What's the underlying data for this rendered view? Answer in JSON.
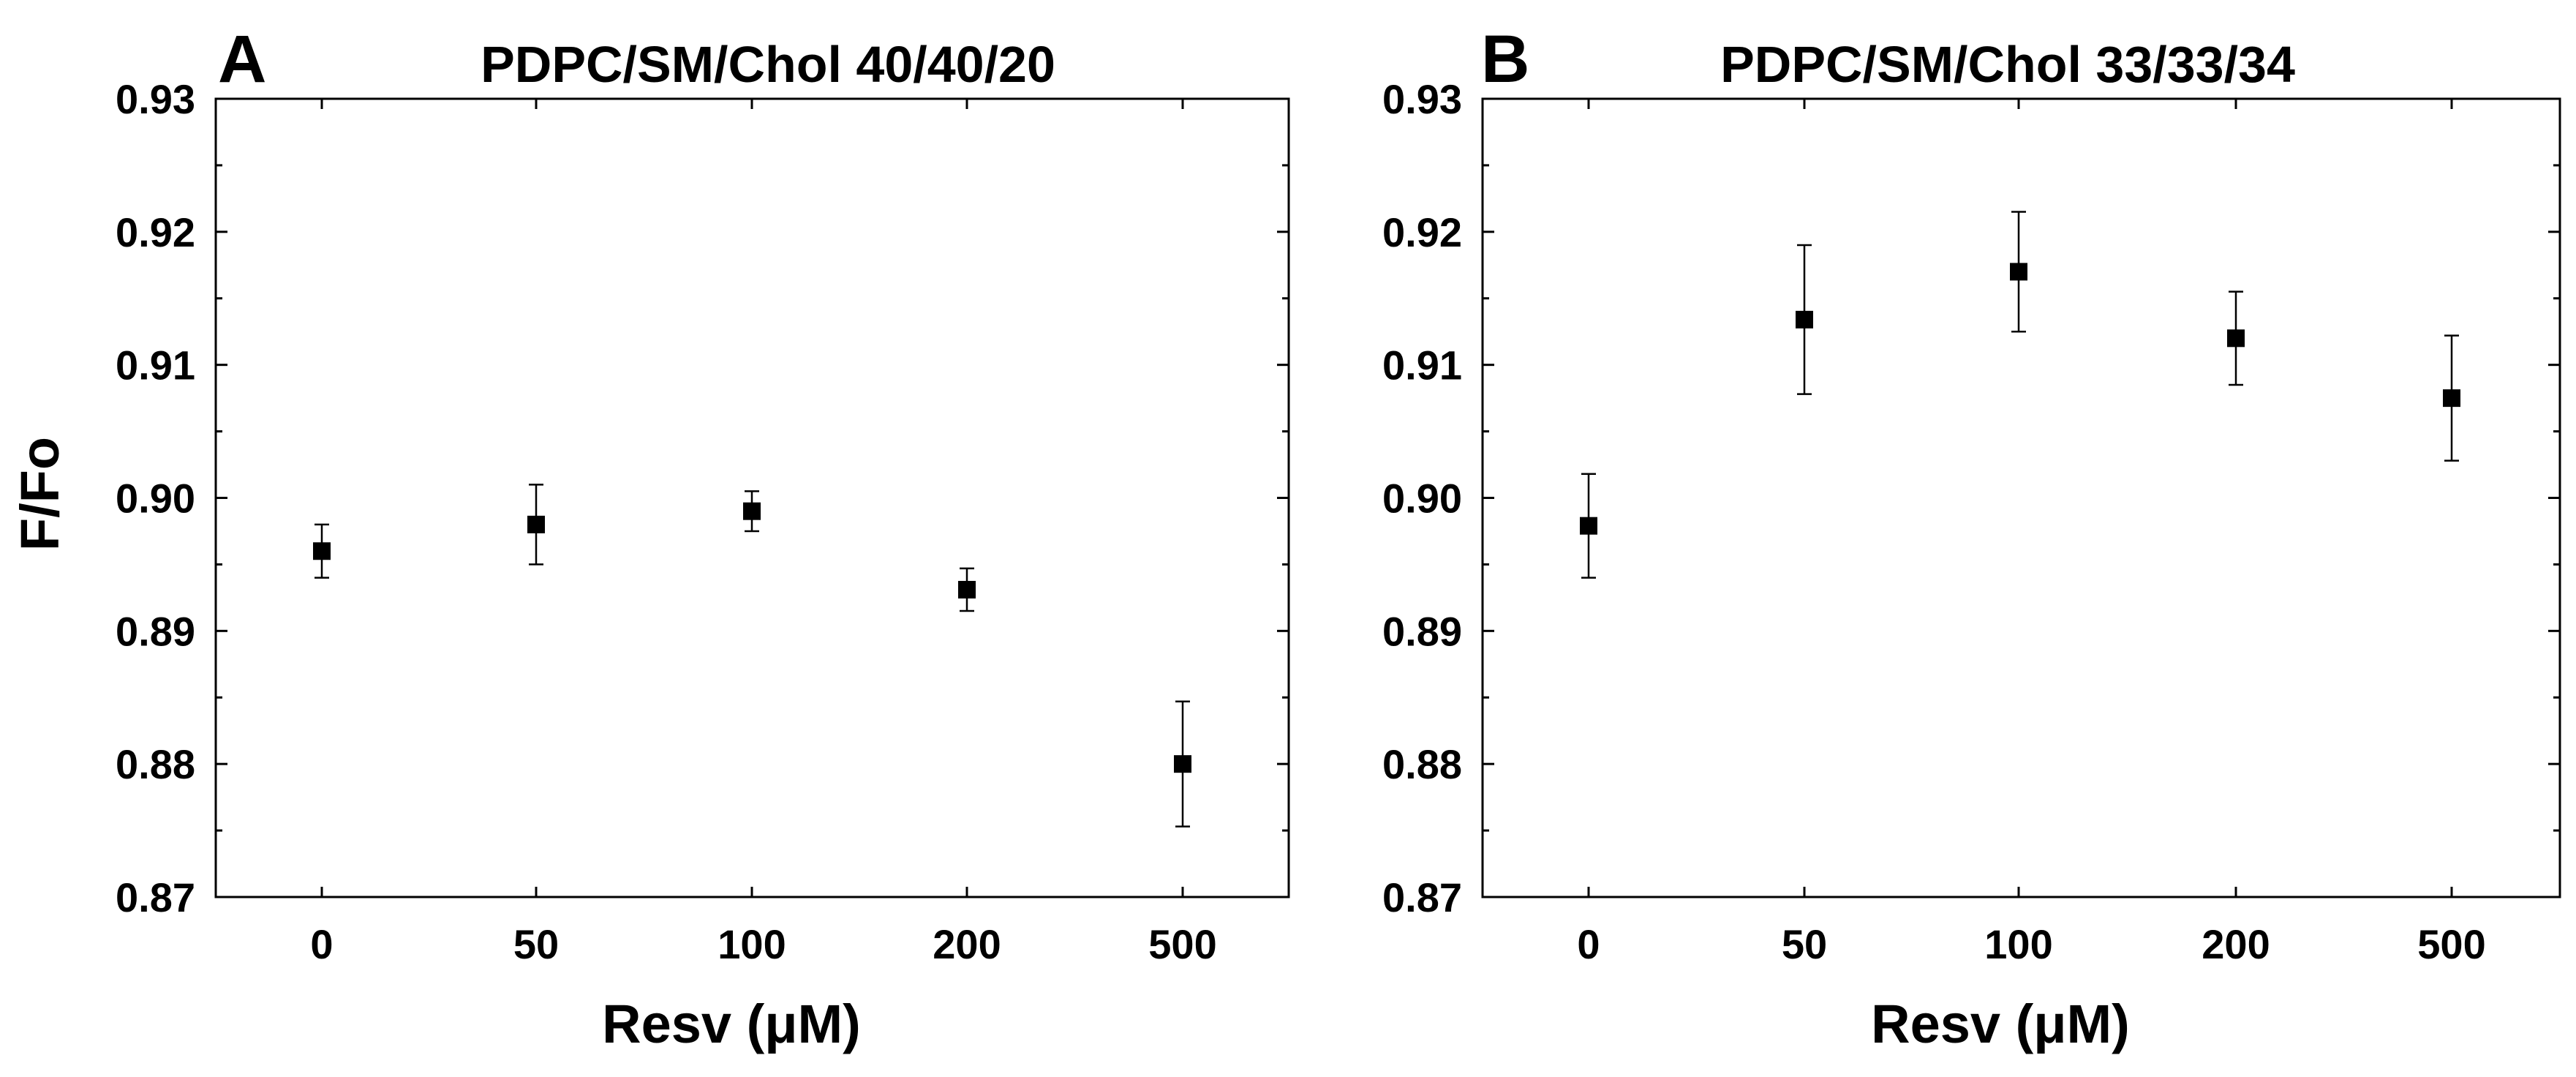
{
  "figure": {
    "ylabel": "F/Fo",
    "xlabel": "Resv (μM)"
  },
  "chart_data": [
    {
      "type": "scatter",
      "panel": "A",
      "title": "PDPC/SM/Chol 40/40/20",
      "xlabel": "Resv (μM)",
      "ylabel": "F/Fo",
      "categories": [
        "0",
        "50",
        "100",
        "200",
        "500"
      ],
      "values": [
        0.896,
        0.898,
        0.899,
        0.8931,
        0.88
      ],
      "errors": [
        0.002,
        0.003,
        0.0015,
        0.0016,
        0.0047
      ],
      "ylim": [
        0.87,
        0.93
      ],
      "yticks": [
        "0.87",
        "0.88",
        "0.89",
        "0.90",
        "0.91",
        "0.92",
        "0.93"
      ],
      "color": "#000000"
    },
    {
      "type": "scatter",
      "panel": "B",
      "title": "PDPC/SM/Chol 33/33/34",
      "xlabel": "Resv (μM)",
      "ylabel": "",
      "categories": [
        "0",
        "50",
        "100",
        "200",
        "500"
      ],
      "values": [
        0.8979,
        0.9134,
        0.917,
        0.912,
        0.9075
      ],
      "errors": [
        0.0039,
        0.0056,
        0.0045,
        0.0035,
        0.0047
      ],
      "ylim": [
        0.87,
        0.93
      ],
      "yticks": [
        "0.87",
        "0.88",
        "0.89",
        "0.90",
        "0.91",
        "0.92",
        "0.93"
      ],
      "color": "#000000"
    }
  ]
}
